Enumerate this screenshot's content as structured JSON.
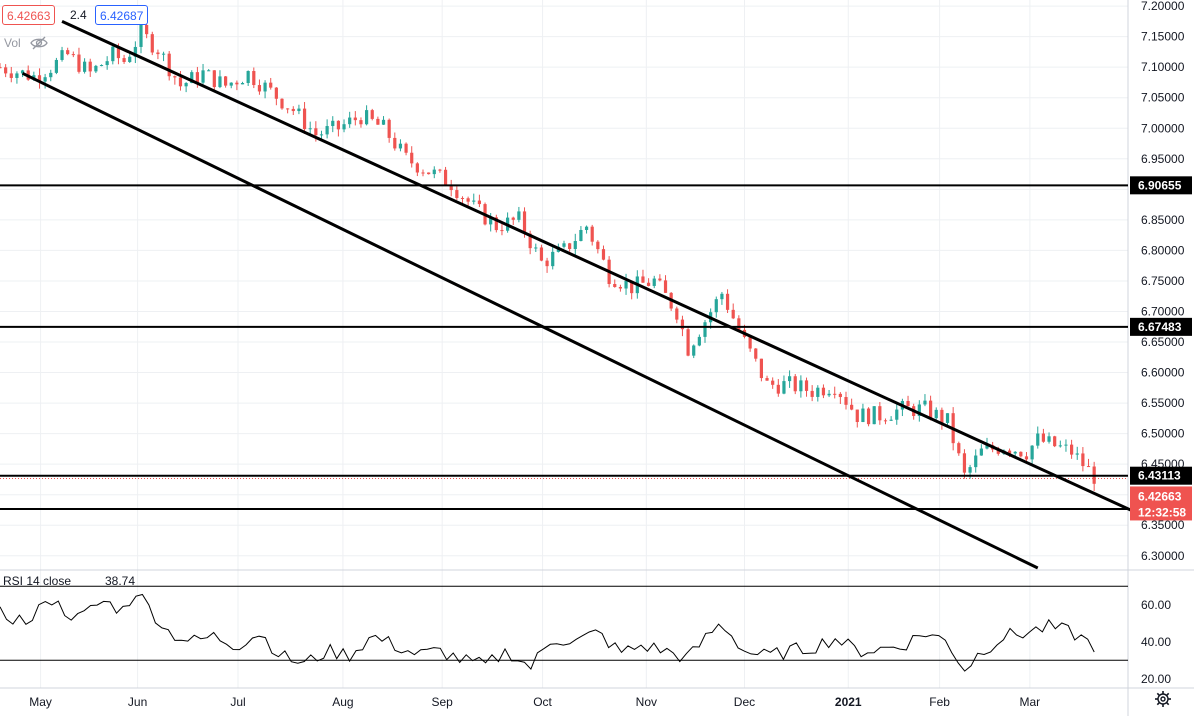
{
  "header": {
    "price_last": "6.42663",
    "volume": "2.4",
    "price_crosshair": "6.42687",
    "vol_label": "Vol"
  },
  "rsi": {
    "label": "RSI 14 close",
    "value": "38.74",
    "levels": [
      70,
      30
    ],
    "ticks": [
      "60.00",
      "40.00",
      "20.00"
    ]
  },
  "countdown": "12:32:58",
  "colors": {
    "up": "#26a69a",
    "down": "#ef5350",
    "line": "#000000",
    "grid": "#eef0f3"
  },
  "chart_data": {
    "type": "candlestick",
    "price_axis_ticks": [
      "7.20000",
      "7.15000",
      "7.10000",
      "7.05000",
      "7.00000",
      "6.95000",
      "6.90000",
      "6.85000",
      "6.80000",
      "6.75000",
      "6.70000",
      "6.65000",
      "6.60000",
      "6.55000",
      "6.50000",
      "6.45000",
      "6.40000",
      "6.35000",
      "6.30000"
    ],
    "ylim": [
      6.28,
      7.21
    ],
    "x_labels": [
      "May",
      "Jun",
      "Jul",
      "Aug",
      "Sep",
      "Oct",
      "Nov",
      "Dec",
      "2021",
      "Feb",
      "Mar"
    ],
    "horizontal_levels": [
      "6.90655",
      "6.67483",
      "6.43113",
      "6.37658"
    ],
    "last_price": "6.42663",
    "channel_upper": [
      [
        0.055,
        7.175
      ],
      [
        1.02,
        6.36
      ]
    ],
    "channel_lower": [
      [
        0.02,
        7.09
      ],
      [
        0.92,
        6.28
      ]
    ],
    "price_path": [
      [
        0.0,
        7.1
      ],
      [
        0.03,
        7.085
      ],
      [
        0.045,
        7.1
      ],
      [
        0.06,
        7.12
      ],
      [
        0.08,
        7.09
      ],
      [
        0.1,
        7.12
      ],
      [
        0.11,
        7.11
      ],
      [
        0.125,
        7.155
      ],
      [
        0.14,
        7.13
      ],
      [
        0.16,
        7.07
      ],
      [
        0.18,
        7.09
      ],
      [
        0.2,
        7.07
      ],
      [
        0.22,
        7.09
      ],
      [
        0.24,
        7.06
      ],
      [
        0.26,
        7.03
      ],
      [
        0.28,
        6.99
      ],
      [
        0.3,
        7.0
      ],
      [
        0.32,
        7.02
      ],
      [
        0.34,
        7.0
      ],
      [
        0.36,
        6.95
      ],
      [
        0.38,
        6.93
      ],
      [
        0.4,
        6.91
      ],
      [
        0.42,
        6.87
      ],
      [
        0.44,
        6.84
      ],
      [
        0.46,
        6.85
      ],
      [
        0.48,
        6.78
      ],
      [
        0.5,
        6.8
      ],
      [
        0.52,
        6.84
      ],
      [
        0.54,
        6.76
      ],
      [
        0.56,
        6.74
      ],
      [
        0.58,
        6.75
      ],
      [
        0.6,
        6.7
      ],
      [
        0.61,
        6.64
      ],
      [
        0.63,
        6.7
      ],
      [
        0.64,
        6.73
      ],
      [
        0.66,
        6.65
      ],
      [
        0.68,
        6.58
      ],
      [
        0.7,
        6.58
      ],
      [
        0.72,
        6.57
      ],
      [
        0.74,
        6.58
      ],
      [
        0.76,
        6.53
      ],
      [
        0.78,
        6.53
      ],
      [
        0.8,
        6.54
      ],
      [
        0.82,
        6.54
      ],
      [
        0.84,
        6.52
      ],
      [
        0.855,
        6.43
      ],
      [
        0.87,
        6.47
      ],
      [
        0.89,
        6.48
      ],
      [
        0.91,
        6.47
      ],
      [
        0.92,
        6.49
      ],
      [
        0.935,
        6.48
      ],
      [
        0.95,
        6.47
      ],
      [
        0.97,
        6.43
      ]
    ],
    "rsi_path": [
      [
        0.0,
        55
      ],
      [
        0.03,
        50
      ],
      [
        0.04,
        65
      ],
      [
        0.055,
        58
      ],
      [
        0.07,
        52
      ],
      [
        0.09,
        62
      ],
      [
        0.11,
        57
      ],
      [
        0.12,
        68
      ],
      [
        0.13,
        60
      ],
      [
        0.15,
        45
      ],
      [
        0.17,
        40
      ],
      [
        0.19,
        43
      ],
      [
        0.21,
        38
      ],
      [
        0.23,
        45
      ],
      [
        0.25,
        32
      ],
      [
        0.27,
        28
      ],
      [
        0.29,
        35
      ],
      [
        0.31,
        33
      ],
      [
        0.33,
        43
      ],
      [
        0.35,
        38
      ],
      [
        0.37,
        33
      ],
      [
        0.39,
        35
      ],
      [
        0.41,
        30
      ],
      [
        0.43,
        27
      ],
      [
        0.45,
        35
      ],
      [
        0.47,
        26
      ],
      [
        0.49,
        42
      ],
      [
        0.51,
        40
      ],
      [
        0.53,
        45
      ],
      [
        0.55,
        34
      ],
      [
        0.57,
        38
      ],
      [
        0.59,
        35
      ],
      [
        0.61,
        31
      ],
      [
        0.63,
        45
      ],
      [
        0.64,
        50
      ],
      [
        0.66,
        35
      ],
      [
        0.68,
        32
      ],
      [
        0.7,
        35
      ],
      [
        0.72,
        37
      ],
      [
        0.74,
        42
      ],
      [
        0.76,
        35
      ],
      [
        0.78,
        36
      ],
      [
        0.8,
        38
      ],
      [
        0.82,
        45
      ],
      [
        0.84,
        40
      ],
      [
        0.855,
        25
      ],
      [
        0.87,
        35
      ],
      [
        0.89,
        43
      ],
      [
        0.91,
        45
      ],
      [
        0.93,
        48
      ],
      [
        0.95,
        45
      ],
      [
        0.97,
        38
      ]
    ]
  }
}
